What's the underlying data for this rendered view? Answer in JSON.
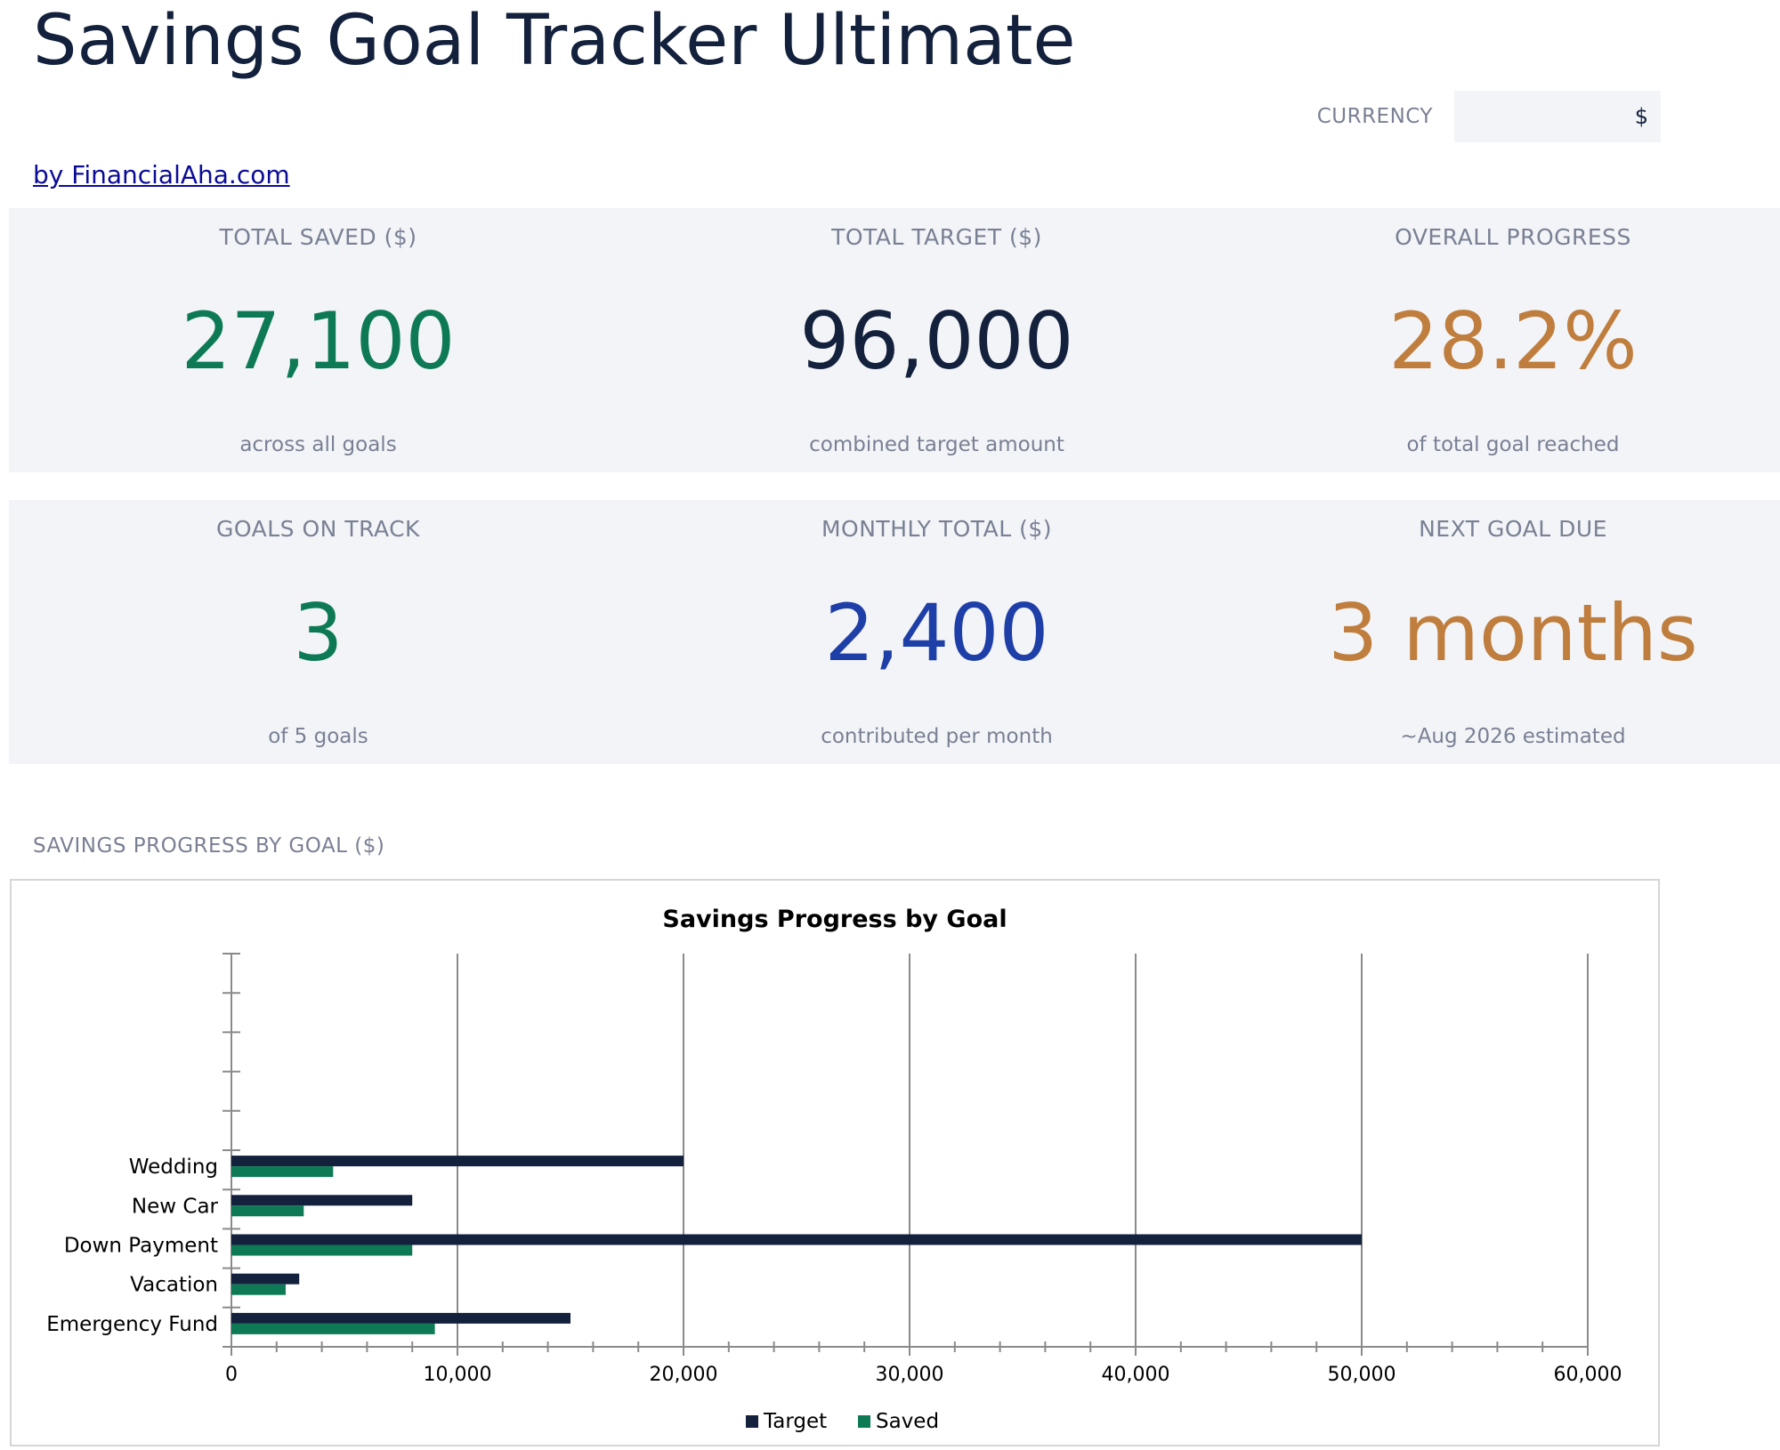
{
  "header": {
    "title": "Savings Goal Tracker Ultimate",
    "byline": "by FinancialAha.com",
    "currency_label": "CURRENCY",
    "currency_value": "$"
  },
  "kpis": [
    {
      "label": "TOTAL SAVED ($)",
      "value": "27,100",
      "sub": "across all goals",
      "color": "#0e7a55"
    },
    {
      "label": "TOTAL TARGET ($)",
      "value": "96,000",
      "sub": "combined target amount",
      "color": "#13213c"
    },
    {
      "label": "OVERALL PROGRESS",
      "value": "28.2%",
      "sub": "of total goal reached",
      "color": "#c07e3e"
    },
    {
      "label": "GOALS ON TRACK",
      "value": "3",
      "sub": "of 5 goals",
      "color": "#0e7a55"
    },
    {
      "label": "MONTHLY TOTAL ($)",
      "value": "2,400",
      "sub": "contributed per month",
      "color": "#1f3fa8"
    },
    {
      "label": "NEXT GOAL DUE",
      "value": "3 months",
      "sub": "~Aug 2026 estimated",
      "color": "#c07e3e"
    }
  ],
  "section_label": "SAVINGS PROGRESS BY GOAL ($)",
  "chart_data": {
    "type": "bar",
    "orientation": "horizontal",
    "title": "Savings Progress by Goal",
    "categories": [
      "Emergency Fund",
      "Vacation",
      "Down Payment",
      "New Car",
      "Wedding"
    ],
    "series": [
      {
        "name": "Target",
        "values": [
          15000,
          3000,
          50000,
          8000,
          20000
        ],
        "color": "#13213c"
      },
      {
        "name": "Saved",
        "values": [
          9000,
          2400,
          8000,
          3200,
          4500
        ],
        "color": "#0e7a55"
      }
    ],
    "xlim": [
      0,
      60000
    ],
    "x_ticks": [
      0,
      10000,
      20000,
      30000,
      40000,
      50000,
      60000
    ],
    "x_tick_labels": [
      "0",
      "10,000",
      "20,000",
      "30,000",
      "40,000",
      "50,000",
      "60,000"
    ],
    "grid": true,
    "legend": "bottom"
  }
}
